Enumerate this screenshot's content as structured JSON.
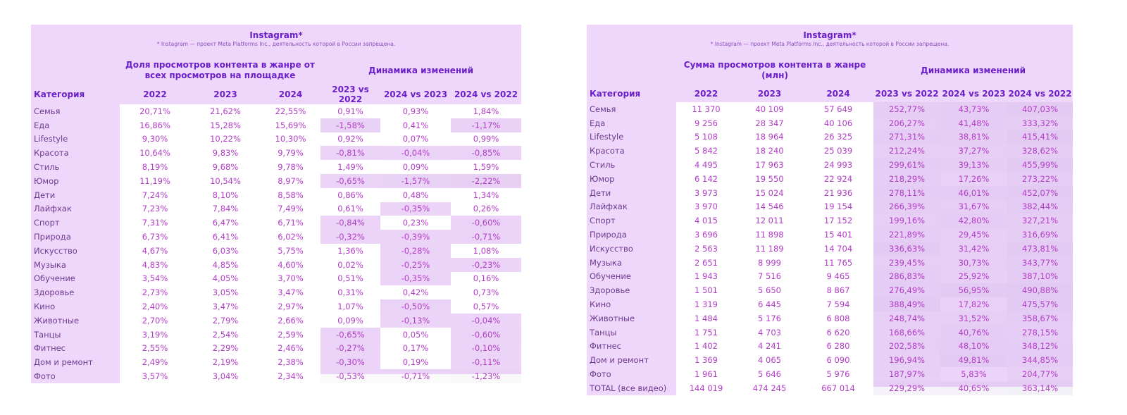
{
  "left": {
    "title": "Instagram*",
    "note": "* Instagram — проект Meta Platforms Inc., деятельность которой в России запрещена.",
    "group1": "Доля просмотров контента в жанре от всех просмотров на площадке",
    "group2": "Динамика изменений",
    "columns": [
      "Категория",
      "2022",
      "2023",
      "2024",
      "2023 vs 2022",
      "2024 vs 2023",
      "2024 vs 2022"
    ],
    "rows": [
      [
        "Семья",
        "20,71%",
        "21,62%",
        "22,55%",
        "0,91%",
        "0,93%",
        "1,84%"
      ],
      [
        "Еда",
        "16,86%",
        "15,28%",
        "15,69%",
        "-1,58%",
        "0,41%",
        "-1,17%"
      ],
      [
        "Lifestyle",
        "9,30%",
        "10,22%",
        "10,30%",
        "0,92%",
        "0,07%",
        "0,99%"
      ],
      [
        "Красота",
        "10,64%",
        "9,83%",
        "9,79%",
        "-0,81%",
        "-0,04%",
        "-0,85%"
      ],
      [
        "Стиль",
        "8,19%",
        "9,68%",
        "9,78%",
        "1,49%",
        "0,09%",
        "1,59%"
      ],
      [
        "Юмор",
        "11,19%",
        "10,54%",
        "8,97%",
        "-0,65%",
        "-1,57%",
        "-2,22%"
      ],
      [
        "Дети",
        "7,24%",
        "8,10%",
        "8,58%",
        "0,86%",
        "0,48%",
        "1,34%"
      ],
      [
        "Лайфхак",
        "7,23%",
        "7,84%",
        "7,49%",
        "0,61%",
        "-0,35%",
        "0,26%"
      ],
      [
        "Спорт",
        "7,31%",
        "6,47%",
        "6,71%",
        "-0,84%",
        "0,23%",
        "-0,60%"
      ],
      [
        "Природа",
        "6,73%",
        "6,41%",
        "6,02%",
        "-0,32%",
        "-0,39%",
        "-0,71%"
      ],
      [
        "Искусство",
        "4,67%",
        "6,03%",
        "5,75%",
        "1,36%",
        "-0,28%",
        "1,08%"
      ],
      [
        "Музыка",
        "4,83%",
        "4,85%",
        "4,60%",
        "0,02%",
        "-0,25%",
        "-0,23%"
      ],
      [
        "Обучение",
        "3,54%",
        "4,05%",
        "3,70%",
        "0,51%",
        "-0,35%",
        "0,16%"
      ],
      [
        "Здоровье",
        "2,73%",
        "3,05%",
        "3,47%",
        "0,31%",
        "0,42%",
        "0,73%"
      ],
      [
        "Кино",
        "2,40%",
        "3,47%",
        "2,97%",
        "1,07%",
        "-0,50%",
        "0,57%"
      ],
      [
        "Животные",
        "2,70%",
        "2,79%",
        "2,66%",
        "0,09%",
        "-0,13%",
        "-0,04%"
      ],
      [
        "Танцы",
        "3,19%",
        "2,54%",
        "2,59%",
        "-0,65%",
        "0,05%",
        "-0,60%"
      ],
      [
        "Фитнес",
        "2,55%",
        "2,29%",
        "2,46%",
        "-0,27%",
        "0,17%",
        "-0,10%"
      ],
      [
        "Дом и ремонт",
        "2,49%",
        "2,19%",
        "2,38%",
        "-0,30%",
        "0,19%",
        "-0,11%"
      ],
      [
        "Фото",
        "3,57%",
        "3,04%",
        "2,34%",
        "-0,53%",
        "-0,71%",
        "-1,23%"
      ]
    ]
  },
  "right": {
    "title": "Instagram*",
    "note": "* Instagram — проект Meta Platforms Inc., деятельность которой в России запрещена.",
    "group1": "Сумма просмотров контента в жанре (млн)",
    "group2": "Динамика изменений",
    "columns": [
      "Категория",
      "2022",
      "2023",
      "2024",
      "2023 vs 2022",
      "2024 vs 2023",
      "2024 vs 2022"
    ],
    "rows": [
      [
        "Семья",
        "11 370",
        "40 109",
        "57 649",
        "252,77%",
        "43,73%",
        "407,03%"
      ],
      [
        "Еда",
        "9 256",
        "28 347",
        "40 106",
        "206,27%",
        "41,48%",
        "333,32%"
      ],
      [
        "Lifestyle",
        "5 108",
        "18 964",
        "26 325",
        "271,31%",
        "38,81%",
        "415,41%"
      ],
      [
        "Красота",
        "5 842",
        "18 240",
        "25 039",
        "212,24%",
        "37,27%",
        "328,62%"
      ],
      [
        "Стиль",
        "4 495",
        "17 963",
        "24 993",
        "299,61%",
        "39,13%",
        "455,99%"
      ],
      [
        "Юмор",
        "6 142",
        "19 550",
        "22 924",
        "218,29%",
        "17,26%",
        "273,22%"
      ],
      [
        "Дети",
        "3 973",
        "15 024",
        "21 936",
        "278,11%",
        "46,01%",
        "452,07%"
      ],
      [
        "Лайфхак",
        "3 970",
        "14 546",
        "19 154",
        "266,39%",
        "31,67%",
        "382,44%"
      ],
      [
        "Спорт",
        "4 015",
        "12 011",
        "17 152",
        "199,16%",
        "42,80%",
        "327,21%"
      ],
      [
        "Природа",
        "3 696",
        "11 898",
        "15 401",
        "221,89%",
        "29,45%",
        "316,69%"
      ],
      [
        "Искусство",
        "2 563",
        "11 189",
        "14 704",
        "336,63%",
        "31,42%",
        "473,81%"
      ],
      [
        "Музыка",
        "2 651",
        "8 999",
        "11 765",
        "239,45%",
        "30,73%",
        "343,77%"
      ],
      [
        "Обучение",
        "1 943",
        "7 516",
        "9 465",
        "286,83%",
        "25,92%",
        "387,10%"
      ],
      [
        "Здоровье",
        "1 501",
        "5 650",
        "8 867",
        "276,49%",
        "56,95%",
        "490,88%"
      ],
      [
        "Кино",
        "1 319",
        "6 445",
        "7 594",
        "388,49%",
        "17,82%",
        "475,57%"
      ],
      [
        "Животные",
        "1 484",
        "5 176",
        "6 808",
        "248,74%",
        "31,52%",
        "358,67%"
      ],
      [
        "Танцы",
        "1 751",
        "4 703",
        "6 620",
        "168,66%",
        "40,76%",
        "278,15%"
      ],
      [
        "Фитнес",
        "1 402",
        "4 241",
        "6 280",
        "202,58%",
        "48,10%",
        "348,12%"
      ],
      [
        "Дом и ремонт",
        "1 369",
        "4 065",
        "6 090",
        "196,94%",
        "49,81%",
        "344,85%"
      ],
      [
        "Фото",
        "1 961",
        "5 646",
        "5 976",
        "187,97%",
        "5,83%",
        "204,77%"
      ],
      [
        "TOTAL (все видео)",
        "144 019",
        "474 245",
        "667 014",
        "229,29%",
        "40,65%",
        "363,14%"
      ]
    ]
  }
}
